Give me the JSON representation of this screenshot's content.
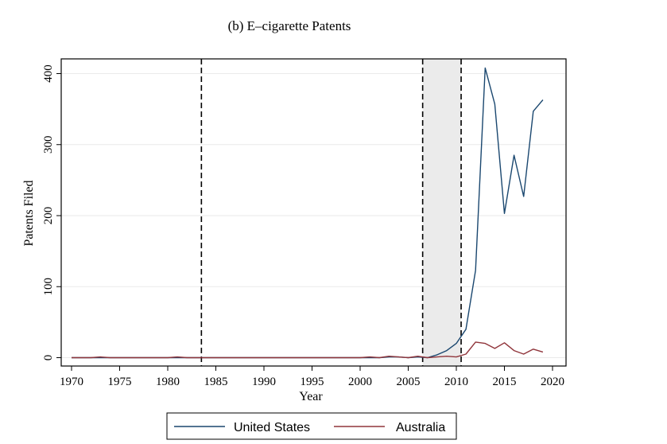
{
  "chart_data": {
    "type": "line",
    "title": "(b) E–cigarette Patents",
    "xlabel": "Year",
    "ylabel": "Patents Filed",
    "xlim": [
      1970,
      2020
    ],
    "ylim": [
      0,
      400
    ],
    "x_ticks": [
      1970,
      1975,
      1980,
      1985,
      1990,
      1995,
      2000,
      2005,
      2010,
      2015,
      2020
    ],
    "y_ticks": [
      0,
      100,
      200,
      300,
      400
    ],
    "grid": "horizontal",
    "legend_position": "bottom",
    "vertical_lines": [
      1983.5,
      2006.5,
      2010.5
    ],
    "shaded_region": [
      2006.5,
      2010.5
    ],
    "x": [
      1970,
      1971,
      1972,
      1973,
      1974,
      1975,
      1976,
      1977,
      1978,
      1979,
      1980,
      1981,
      1982,
      1983,
      1984,
      1985,
      1986,
      1987,
      1988,
      1989,
      1990,
      1991,
      1992,
      1993,
      1994,
      1995,
      1996,
      1997,
      1998,
      1999,
      2000,
      2001,
      2002,
      2003,
      2004,
      2005,
      2006,
      2007,
      2008,
      2009,
      2010,
      2011,
      2012,
      2013,
      2014,
      2015,
      2016,
      2017,
      2018,
      2019
    ],
    "series": [
      {
        "name": "United States",
        "color": "#1a476f",
        "values": [
          0,
          0,
          0,
          0,
          0,
          0,
          0,
          0,
          0,
          0,
          0,
          0,
          0,
          0,
          0,
          0,
          0,
          0,
          0,
          0,
          0,
          0,
          0,
          0,
          0,
          0,
          0,
          0,
          0,
          0,
          0,
          0,
          0,
          1,
          1,
          0,
          1,
          0,
          4,
          10,
          20,
          40,
          123,
          408,
          357,
          203,
          285,
          227,
          347,
          363
        ]
      },
      {
        "name": "Australia",
        "color": "#90353b",
        "values": [
          0,
          0,
          0,
          1,
          0,
          0,
          0,
          0,
          0,
          0,
          0,
          1,
          0,
          0,
          0,
          0,
          0,
          0,
          0,
          0,
          0,
          0,
          0,
          0,
          0,
          0,
          0,
          0,
          0,
          0,
          0,
          1,
          0,
          2,
          1,
          0,
          2,
          0,
          1,
          2,
          1,
          5,
          22,
          20,
          13,
          21,
          10,
          5,
          12,
          8
        ]
      }
    ]
  }
}
